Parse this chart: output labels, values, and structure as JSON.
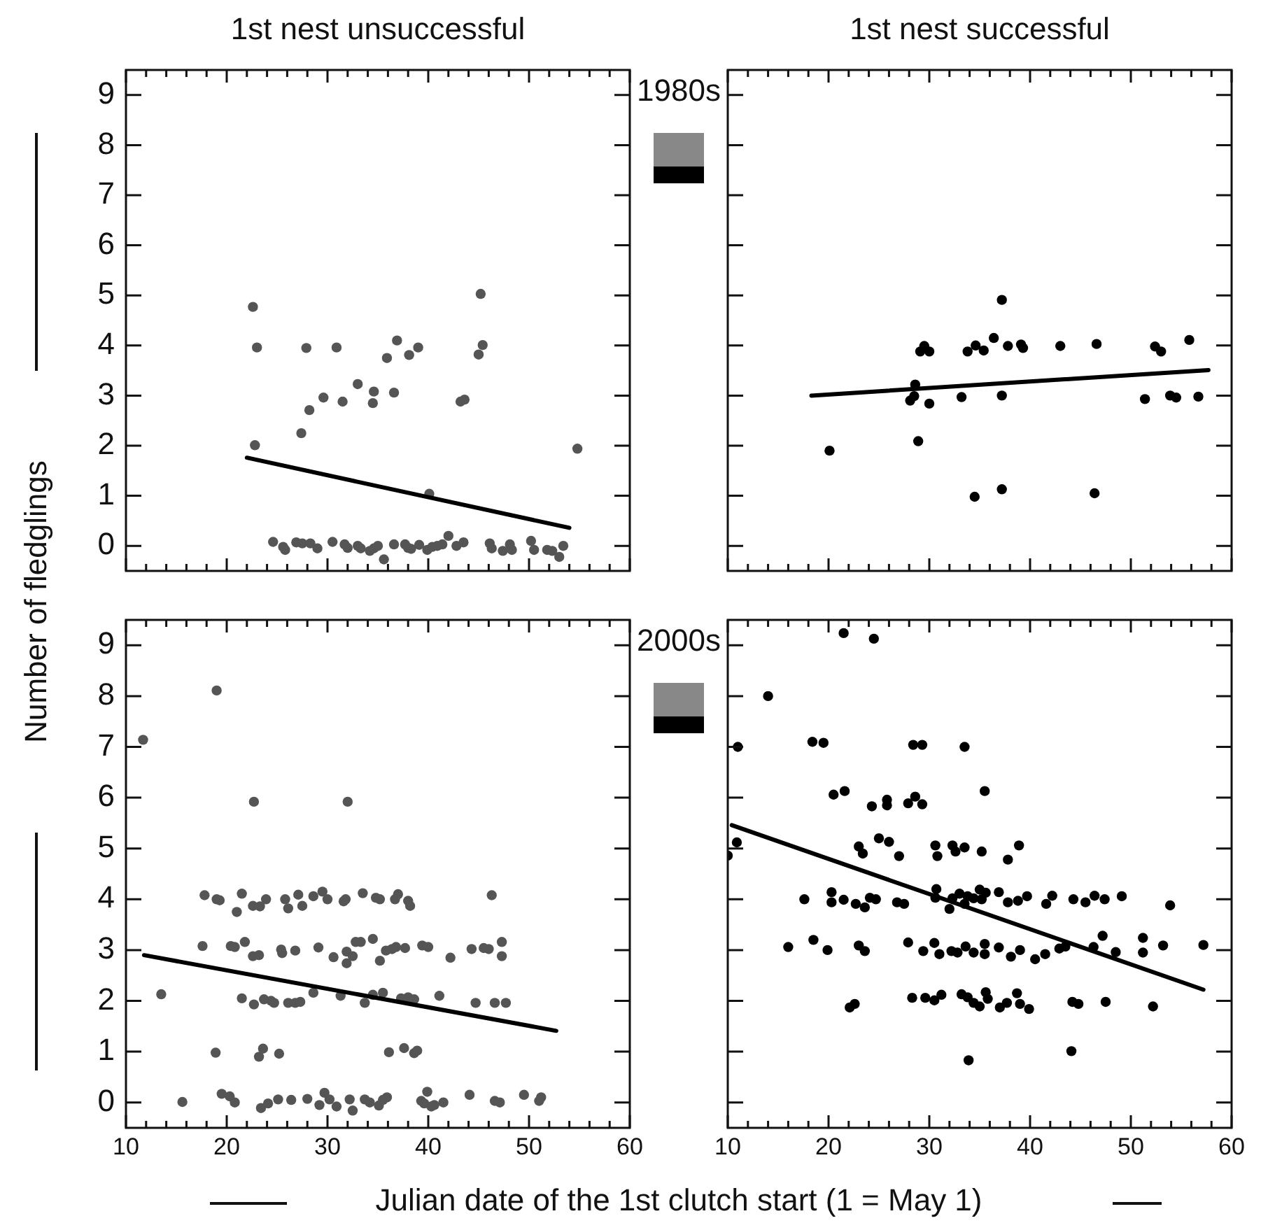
{
  "chart_data": [
    {
      "type": "scatter",
      "title": "1st nest unsuccessful",
      "ylabel": "Number of fledglings",
      "annotations": [
        "1980s"
      ],
      "grid": false,
      "legend": false,
      "tick_labels": "y",
      "xlim": [
        10,
        60
      ],
      "ylim": [
        -0.5,
        9.5
      ],
      "xticks": [
        10,
        {
          "value": 12,
          "label": null
        },
        {
          "value": 14,
          "label": null
        },
        {
          "value": 16,
          "label": null
        },
        {
          "value": 18,
          "label": null
        },
        20,
        {
          "value": 22,
          "label": null
        },
        {
          "value": 24,
          "label": null
        },
        {
          "value": 26,
          "label": null
        },
        {
          "value": 28,
          "label": null
        },
        30,
        {
          "value": 32,
          "label": null
        },
        {
          "value": 34,
          "label": null
        },
        {
          "value": 36,
          "label": null
        },
        {
          "value": 38,
          "label": null
        },
        40,
        {
          "value": 42,
          "label": null
        },
        {
          "value": 44,
          "label": null
        },
        {
          "value": 46,
          "label": null
        },
        {
          "value": 48,
          "label": null
        },
        50,
        {
          "value": 52,
          "label": null
        },
        {
          "value": 54,
          "label": null
        },
        {
          "value": 56,
          "label": null
        },
        {
          "value": 58,
          "label": null
        },
        60
      ],
      "yticks": [
        0,
        1,
        2,
        3,
        4,
        5,
        6,
        7,
        8,
        9
      ],
      "series": [
        {
          "color": "#555555",
          "marker": "circle",
          "x": [
            22.6,
            23.0,
            22.8,
            27.4,
            27.9,
            28.2,
            29.6,
            30.9,
            31.5,
            33.0,
            34.5,
            34.6,
            35.9,
            36.6,
            36.9,
            38.1,
            39.0,
            40.1,
            43.2,
            43.6,
            45.0,
            45.2,
            45.4,
            54.8,
            24.6,
            25.6,
            25.8,
            26.9,
            27.5,
            28.3,
            29.0,
            30.5,
            31.7,
            32.0,
            33.0,
            33.3,
            34.2,
            34.6,
            35.0,
            35.6,
            36.6,
            37.7,
            38.0,
            38.3,
            39.1,
            39.9,
            40.4,
            40.9,
            41.4,
            42.0,
            42.8,
            43.5,
            46.1,
            46.3,
            47.4,
            48.1,
            48.3,
            50.2,
            50.5,
            51.8,
            52.3,
            53.0,
            53.4
          ],
          "values": [
            4.77,
            3.96,
            2.01,
            2.25,
            3.95,
            2.71,
            2.96,
            3.96,
            2.88,
            3.23,
            2.85,
            3.08,
            3.75,
            3.06,
            4.1,
            3.81,
            3.96,
            1.04,
            2.88,
            2.92,
            3.82,
            5.03,
            4.01,
            1.94,
            0.08,
            -0.02,
            -0.08,
            0.07,
            0.05,
            0.05,
            -0.05,
            0.08,
            0.03,
            -0.04,
            0.0,
            -0.05,
            -0.1,
            -0.05,
            0.0,
            -0.27,
            0.03,
            0.03,
            -0.04,
            -0.06,
            0.02,
            -0.08,
            -0.02,
            0.0,
            0.03,
            0.2,
            0.0,
            0.07,
            0.05,
            -0.05,
            -0.1,
            0.03,
            -0.08,
            0.1,
            -0.08,
            -0.08,
            -0.1,
            -0.22,
            0.0
          ]
        },
        {
          "type": "line",
          "color": "#000000",
          "x": [
            22.0,
            54.0
          ],
          "values": [
            1.76,
            0.36
          ]
        }
      ]
    },
    {
      "type": "scatter",
      "title": "1st nest successful",
      "grid": false,
      "legend": false,
      "tick_labels": false,
      "xlim": [
        10,
        60
      ],
      "ylim": [
        -0.5,
        9.5
      ],
      "xticks": [
        10,
        {
          "value": 12,
          "label": null
        },
        {
          "value": 14,
          "label": null
        },
        {
          "value": 16,
          "label": null
        },
        {
          "value": 18,
          "label": null
        },
        20,
        {
          "value": 22,
          "label": null
        },
        {
          "value": 24,
          "label": null
        },
        {
          "value": 26,
          "label": null
        },
        {
          "value": 28,
          "label": null
        },
        30,
        {
          "value": 32,
          "label": null
        },
        {
          "value": 34,
          "label": null
        },
        {
          "value": 36,
          "label": null
        },
        {
          "value": 38,
          "label": null
        },
        40,
        {
          "value": 42,
          "label": null
        },
        {
          "value": 44,
          "label": null
        },
        {
          "value": 46,
          "label": null
        },
        {
          "value": 48,
          "label": null
        },
        50,
        {
          "value": 52,
          "label": null
        },
        {
          "value": 54,
          "label": null
        },
        {
          "value": 56,
          "label": null
        },
        {
          "value": 58,
          "label": null
        },
        60
      ],
      "yticks": [
        0,
        1,
        2,
        3,
        4,
        5,
        6,
        7,
        8,
        9
      ],
      "series": [
        {
          "color": "#000000",
          "marker": "circle",
          "x": [
            20.1,
            28.1,
            28.5,
            28.6,
            28.9,
            29.1,
            29.5,
            30.0,
            30.0,
            33.2,
            33.8,
            34.5,
            34.6,
            35.4,
            36.4,
            37.2,
            37.2,
            37.2,
            37.8,
            39.1,
            39.3,
            43.0,
            46.4,
            46.6,
            51.4,
            52.4,
            53.0,
            53.9,
            54.5,
            55.8,
            56.7
          ],
          "values": [
            1.9,
            2.9,
            2.99,
            3.22,
            2.09,
            3.88,
            3.99,
            3.88,
            2.84,
            2.97,
            3.88,
            0.98,
            4.0,
            3.9,
            4.15,
            4.91,
            3.0,
            1.13,
            3.99,
            4.02,
            3.95,
            3.99,
            1.05,
            4.03,
            2.93,
            3.98,
            3.88,
            3.0,
            2.96,
            4.11,
            2.98
          ]
        },
        {
          "type": "line",
          "color": "#000000",
          "x": [
            18.3,
            57.7
          ],
          "values": [
            3.0,
            3.51
          ]
        }
      ]
    },
    {
      "type": "scatter",
      "xlabel": "Julian date of the 1st clutch start (1 = May 1)",
      "annotations": [
        "2000s"
      ],
      "grid": false,
      "legend": false,
      "xlim": [
        10,
        60
      ],
      "ylim": [
        -0.5,
        9.5
      ],
      "xticks": [
        10,
        {
          "value": 12,
          "label": null
        },
        {
          "value": 14,
          "label": null
        },
        {
          "value": 16,
          "label": null
        },
        {
          "value": 18,
          "label": null
        },
        20,
        {
          "value": 22,
          "label": null
        },
        {
          "value": 24,
          "label": null
        },
        {
          "value": 26,
          "label": null
        },
        {
          "value": 28,
          "label": null
        },
        30,
        {
          "value": 32,
          "label": null
        },
        {
          "value": 34,
          "label": null
        },
        {
          "value": 36,
          "label": null
        },
        {
          "value": 38,
          "label": null
        },
        40,
        {
          "value": 42,
          "label": null
        },
        {
          "value": 44,
          "label": null
        },
        {
          "value": 46,
          "label": null
        },
        {
          "value": 48,
          "label": null
        },
        50,
        {
          "value": 52,
          "label": null
        },
        {
          "value": 54,
          "label": null
        },
        {
          "value": 56,
          "label": null
        },
        {
          "value": 58,
          "label": null
        },
        60
      ],
      "yticks": [
        0,
        1,
        2,
        3,
        4,
        5,
        6,
        7,
        8,
        9
      ],
      "series": [
        {
          "color": "#555555",
          "marker": "circle",
          "x": [
            11.7,
            13.5,
            15.6,
            19.0,
            17.6,
            17.8,
            19.0,
            19.3,
            18.9,
            19.5,
            20.3,
            20.8,
            20.4,
            20.8,
            21.0,
            21.5,
            21.5,
            21.8,
            22.6,
            22.6,
            22.7,
            22.7,
            23.2,
            23.2,
            23.3,
            23.4,
            23.6,
            23.7,
            23.9,
            24.1,
            24.4,
            24.7,
            25.2,
            25.1,
            25.4,
            25.5,
            25.8,
            26.1,
            26.1,
            26.4,
            26.8,
            26.8,
            27.1,
            27.3,
            27.5,
            28.0,
            28.6,
            28.6,
            29.1,
            29.2,
            29.5,
            29.7,
            30.0,
            30.2,
            30.6,
            30.9,
            31.3,
            31.6,
            31.8,
            31.9,
            31.9,
            32.0,
            32.2,
            32.5,
            32.5,
            32.8,
            33.3,
            33.5,
            33.7,
            33.7,
            34.2,
            34.5,
            34.5,
            34.8,
            35.2,
            35.2,
            35.1,
            35.5,
            35.5,
            35.9,
            35.8,
            36.1,
            36.4,
            36.7,
            36.8,
            37.0,
            37.3,
            37.6,
            37.7,
            38.0,
            38.0,
            38.2,
            38.6,
            38.6,
            38.9,
            39.3,
            39.4,
            39.6,
            39.9,
            40.0,
            40.3,
            40.6,
            41.1,
            41.5,
            42.2,
            44.1,
            44.3,
            44.7,
            45.5,
            46.0,
            46.3,
            46.6,
            46.6,
            47.1,
            47.3,
            47.3,
            47.7,
            49.5,
            51.0,
            51.2
          ],
          "values": [
            7.14,
            2.13,
            0.01,
            8.11,
            3.08,
            4.08,
            4.0,
            3.98,
            0.98,
            0.17,
            0.12,
            0.0,
            3.08,
            3.06,
            3.75,
            4.11,
            2.05,
            3.16,
            3.87,
            2.88,
            5.92,
            1.93,
            2.9,
            0.9,
            3.86,
            -0.11,
            1.06,
            2.03,
            4.0,
            -0.02,
            2.0,
            1.96,
            0.96,
            0.06,
            3.01,
            2.94,
            4.0,
            3.82,
            1.96,
            0.05,
            2.99,
            1.96,
            4.09,
            1.98,
            3.87,
            0.07,
            4.06,
            2.16,
            3.05,
            -0.05,
            4.15,
            0.19,
            4.0,
            0.06,
            2.86,
            -0.08,
            2.1,
            3.96,
            4.0,
            2.97,
            2.74,
            5.92,
            0.06,
            2.88,
            -0.16,
            3.16,
            3.16,
            4.12,
            1.96,
            0.06,
            0.0,
            2.12,
            3.22,
            4.03,
            4.0,
            2.79,
            -0.06,
            2.16,
            0.05,
            0.1,
            2.99,
            0.99,
            3.02,
            4.0,
            3.06,
            4.1,
            2.05,
            1.07,
            3.04,
            3.97,
            2.07,
            3.87,
            0.97,
            2.03,
            1.02,
            0.03,
            3.09,
            -0.02,
            0.21,
            3.06,
            -0.08,
            -0.05,
            2.1,
            0.0,
            2.85,
            0.15,
            3.02,
            1.96,
            3.04,
            3.02,
            4.08,
            1.96,
            0.03,
            0.0,
            3.16,
            2.88,
            1.96,
            0.15,
            0.03,
            0.1
          ]
        },
        {
          "type": "line",
          "color": "#000000",
          "x": [
            11.8,
            52.7
          ],
          "values": [
            2.9,
            1.41
          ]
        }
      ]
    },
    {
      "type": "scatter",
      "grid": false,
      "legend": false,
      "tick_labels": "x",
      "xlim": [
        10,
        60
      ],
      "ylim": [
        -0.5,
        9.5
      ],
      "xticks": [
        10,
        {
          "value": 12,
          "label": null
        },
        {
          "value": 14,
          "label": null
        },
        {
          "value": 16,
          "label": null
        },
        {
          "value": 18,
          "label": null
        },
        20,
        {
          "value": 22,
          "label": null
        },
        {
          "value": 24,
          "label": null
        },
        {
          "value": 26,
          "label": null
        },
        {
          "value": 28,
          "label": null
        },
        30,
        {
          "value": 32,
          "label": null
        },
        {
          "value": 34,
          "label": null
        },
        {
          "value": 36,
          "label": null
        },
        {
          "value": 38,
          "label": null
        },
        40,
        {
          "value": 42,
          "label": null
        },
        {
          "value": 44,
          "label": null
        },
        {
          "value": 46,
          "label": null
        },
        {
          "value": 48,
          "label": null
        },
        50,
        {
          "value": 52,
          "label": null
        },
        {
          "value": 54,
          "label": null
        },
        {
          "value": 56,
          "label": null
        },
        {
          "value": 58,
          "label": null
        },
        60
      ],
      "yticks": [
        0,
        1,
        2,
        3,
        4,
        5,
        6,
        7,
        8,
        9
      ],
      "series": [
        {
          "color": "#000000",
          "marker": "circle",
          "x": [
            21.5,
            24.5,
            14.0,
            11.0,
            10.9,
            10.0,
            18.4,
            19.5,
            20.5,
            21.6,
            24.3,
            25.8,
            25.8,
            27.9,
            28.6,
            29.3,
            28.4,
            29.3,
            33.5,
            35.5,
            23.0,
            23.4,
            25.0,
            26.0,
            27.0,
            30.6,
            30.8,
            32.3,
            32.6,
            33.5,
            35.2,
            37.8,
            38.9,
            17.6,
            20.3,
            20.3,
            21.5,
            22.7,
            23.6,
            24.1,
            24.7,
            26.8,
            27.5,
            30.7,
            30.6,
            32.0,
            32.3,
            33.0,
            33.5,
            33.8,
            34.4,
            35.0,
            35.2,
            35.6,
            36.9,
            37.8,
            38.8,
            39.7,
            41.6,
            42.2,
            44.3,
            45.5,
            46.4,
            47.4,
            49.1,
            53.9,
            16.0,
            18.5,
            19.9,
            23.0,
            23.6,
            27.9,
            29.4,
            30.5,
            31.0,
            32.2,
            32.8,
            33.6,
            34.4,
            35.5,
            35.5,
            36.9,
            38.1,
            39.0,
            40.5,
            41.5,
            42.9,
            43.5,
            46.3,
            47.2,
            48.5,
            51.2,
            51.2,
            53.2,
            57.2,
            22.1,
            22.6,
            28.3,
            29.6,
            30.5,
            31.2,
            33.2,
            33.8,
            34.4,
            35.0,
            35.6,
            35.8,
            37.0,
            37.7,
            38.7,
            39.0,
            39.9,
            44.2,
            44.8,
            47.5,
            52.2,
            33.9,
            44.1
          ],
          "values": [
            9.24,
            9.13,
            8.0,
            7.0,
            5.12,
            4.86,
            7.1,
            7.08,
            6.06,
            6.13,
            5.83,
            5.96,
            5.85,
            5.89,
            6.02,
            5.87,
            7.04,
            7.04,
            7.0,
            6.13,
            5.04,
            4.9,
            5.2,
            5.13,
            4.85,
            5.06,
            4.85,
            5.06,
            4.94,
            5.02,
            4.94,
            4.78,
            5.06,
            4.0,
            4.14,
            3.94,
            3.99,
            3.91,
            3.84,
            4.03,
            4.0,
            3.94,
            3.91,
            4.2,
            4.03,
            3.81,
            4.02,
            4.11,
            3.91,
            4.06,
            4.02,
            4.19,
            4.0,
            4.13,
            4.14,
            3.94,
            3.97,
            4.06,
            3.91,
            4.07,
            4.0,
            3.94,
            4.07,
            4.0,
            4.06,
            3.88,
            3.06,
            3.2,
            3.0,
            3.09,
            2.98,
            3.15,
            2.98,
            3.14,
            2.92,
            2.98,
            2.95,
            3.07,
            2.95,
            2.92,
            3.12,
            3.05,
            2.87,
            3.0,
            2.82,
            2.92,
            3.03,
            3.07,
            3.06,
            3.28,
            2.96,
            3.24,
            2.95,
            3.09,
            3.1,
            1.87,
            1.94,
            2.06,
            2.06,
            2.01,
            2.12,
            2.13,
            2.07,
            1.96,
            1.89,
            2.17,
            2.04,
            1.87,
            1.96,
            2.15,
            1.94,
            1.84,
            1.98,
            1.94,
            1.98,
            1.89,
            0.83,
            1.01
          ]
        },
        {
          "type": "line",
          "color": "#000000",
          "x": [
            10.4,
            57.2
          ],
          "values": [
            5.46,
            2.22
          ]
        }
      ]
    }
  ]
}
